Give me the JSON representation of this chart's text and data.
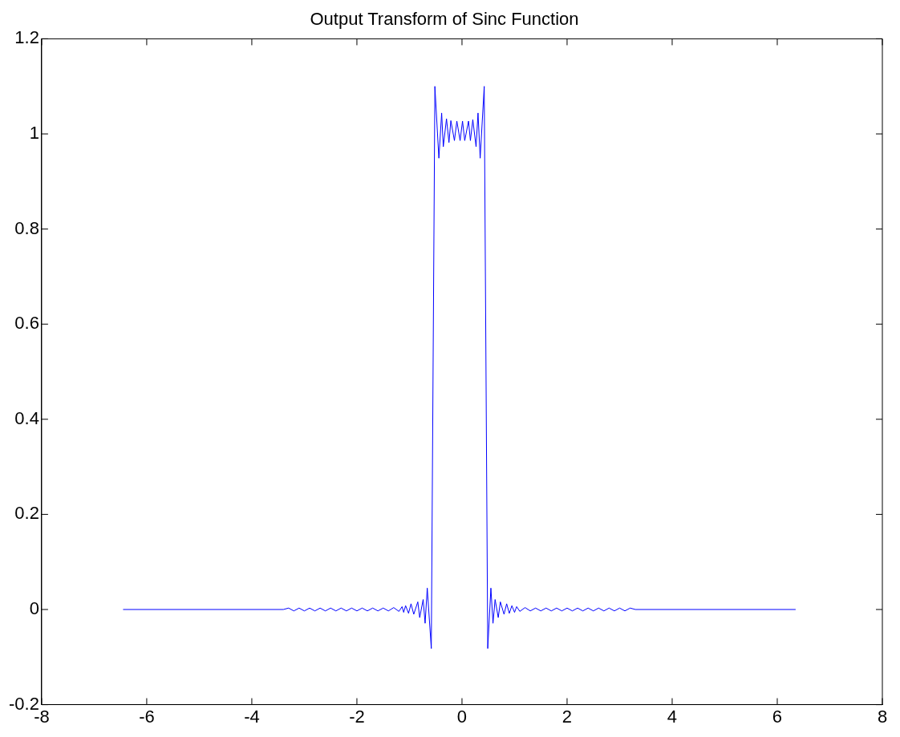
{
  "chart_data": {
    "type": "line",
    "title": "Output Transform of Sinc Function",
    "x": [
      -6.45,
      -3.4,
      -3.3,
      -3.2,
      -3.1,
      -3.0,
      -2.9,
      -2.8,
      -2.7,
      -2.6,
      -2.5,
      -2.4,
      -2.3,
      -2.2,
      -2.1,
      -2.0,
      -1.9,
      -1.8,
      -1.7,
      -1.6,
      -1.5,
      -1.4,
      -1.3,
      -1.2,
      -1.14,
      -1.11,
      -1.073,
      -1.017,
      -0.97,
      -0.918,
      -0.841,
      -0.805,
      -0.739,
      -0.702,
      -0.661,
      -0.584,
      -0.516,
      -0.44,
      -0.387,
      -0.356,
      -0.295,
      -0.248,
      -0.212,
      -0.144,
      -0.098,
      -0.036,
      0.01,
      0.052,
      0.124,
      0.16,
      0.206,
      0.268,
      0.305,
      0.346,
      0.423,
      0.49,
      0.55,
      0.59,
      0.63,
      0.69,
      0.73,
      0.8,
      0.85,
      0.9,
      0.95,
      1.0,
      1.04,
      1.1,
      1.2,
      1.3,
      1.4,
      1.5,
      1.6,
      1.7,
      1.8,
      1.9,
      2.0,
      2.1,
      2.2,
      2.3,
      2.4,
      2.5,
      2.6,
      2.7,
      2.8,
      2.9,
      3.0,
      3.1,
      3.2,
      3.3,
      6.35
    ],
    "series": [
      {
        "color": "#0000ff",
        "values": [
          0,
          0,
          0.003,
          -0.003,
          0.003,
          -0.003,
          0.003,
          -0.003,
          0.003,
          -0.003,
          0.003,
          -0.003,
          0.003,
          -0.003,
          0.003,
          -0.003,
          0.003,
          -0.003,
          0.003,
          -0.003,
          0.003,
          -0.003,
          0.004,
          -0.004,
          0.006,
          -0.006,
          0.008,
          -0.008,
          0.012,
          -0.01,
          0.016,
          -0.017,
          0.021,
          -0.029,
          0.045,
          -0.082,
          1.1,
          0.949,
          1.044,
          0.973,
          1.032,
          0.982,
          1.028,
          0.986,
          1.027,
          0.986,
          1.027,
          0.986,
          1.027,
          0.986,
          1.03,
          0.973,
          1.044,
          0.949,
          1.1,
          -0.082,
          0.045,
          -0.029,
          0.021,
          -0.017,
          0.016,
          -0.01,
          0.012,
          -0.008,
          0.008,
          -0.006,
          0.006,
          -0.004,
          0.004,
          -0.003,
          0.003,
          -0.003,
          0.003,
          -0.003,
          0.003,
          -0.003,
          0.003,
          -0.003,
          0.003,
          -0.003,
          0.003,
          -0.003,
          0.003,
          -0.003,
          0.003,
          -0.003,
          0.003,
          -0.003,
          0.003,
          0,
          0
        ]
      }
    ],
    "xlim": [
      -8,
      8
    ],
    "xticks": [
      -8,
      -6,
      -4,
      -2,
      0,
      2,
      4,
      6,
      8
    ],
    "ylim": [
      -0.2,
      1.2
    ],
    "yticks": [
      -0.2,
      0,
      0.2,
      0.4,
      0.6,
      0.8,
      1,
      1.2
    ],
    "grid": false,
    "legend": false,
    "marker": "none",
    "line_style": "solid"
  }
}
